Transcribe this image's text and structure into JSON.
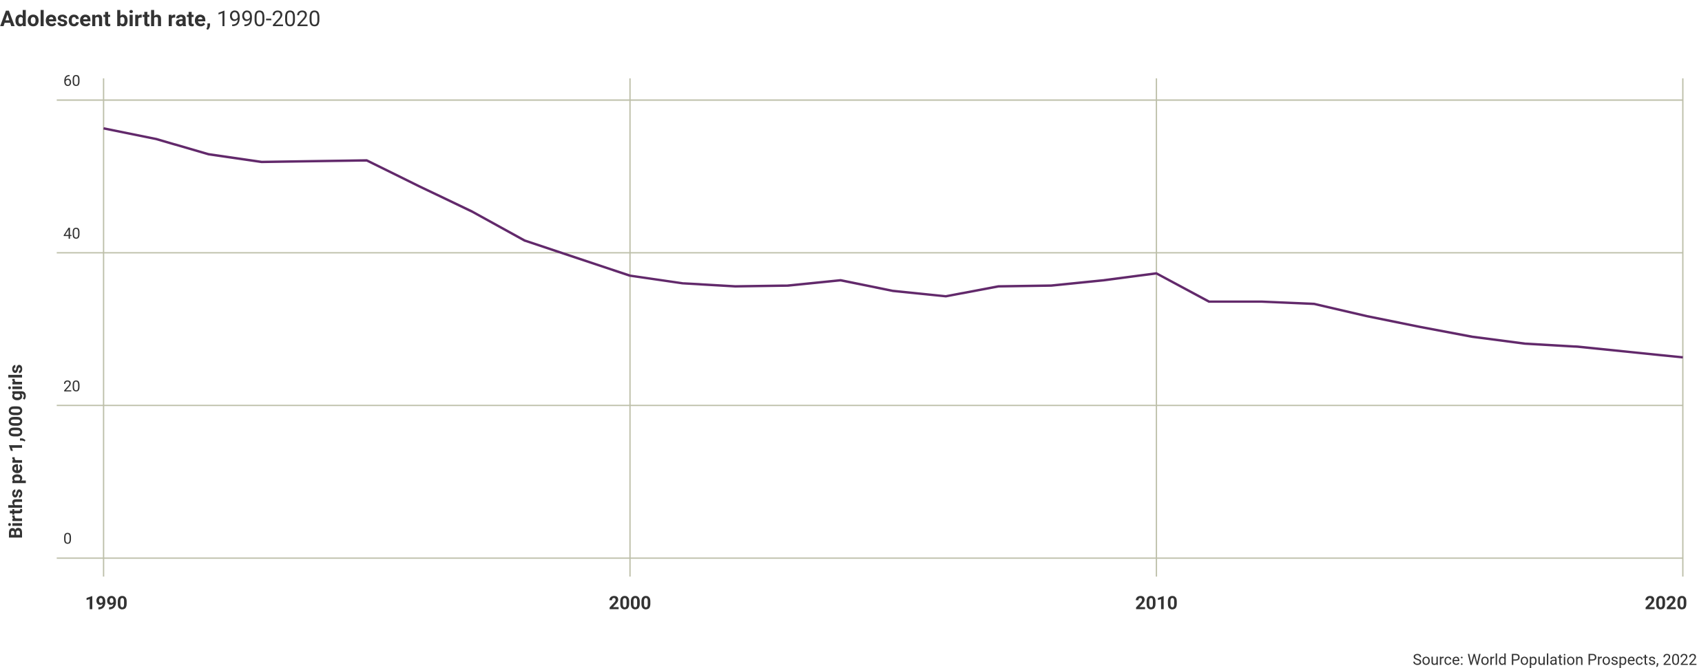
{
  "chart_data": {
    "type": "line",
    "title": "Adolescent birth rate,",
    "subtitle": "1990-2020",
    "y_label": "Births per 1,000 girls",
    "source": "Source: World Population Prospects, 2022",
    "x": [
      1990,
      1991,
      1992,
      1993,
      1994,
      1995,
      1996,
      1997,
      1998,
      1999,
      2000,
      2001,
      2002,
      2003,
      2004,
      2005,
      2006,
      2007,
      2008,
      2009,
      2010,
      2011,
      2012,
      2013,
      2014,
      2015,
      2016,
      2017,
      2018,
      2019,
      2020
    ],
    "series": [
      {
        "name": "Adolescent birth rate",
        "color": "#62296b",
        "values": [
          56.3,
          54.9,
          52.9,
          51.9,
          52.0,
          52.1,
          48.7,
          45.4,
          41.6,
          39.3,
          37.0,
          36.0,
          35.6,
          35.7,
          36.4,
          35.0,
          34.3,
          35.6,
          35.7,
          36.4,
          37.3,
          33.6,
          33.6,
          33.3,
          31.7,
          30.3,
          29.0,
          28.1,
          27.7,
          27.0,
          26.3
        ]
      }
    ],
    "xlim": [
      1990,
      2020
    ],
    "xticks": [
      1990,
      2000,
      2010,
      2020
    ],
    "ylim": [
      0,
      60
    ],
    "yticks": [
      0,
      20,
      40,
      60
    ],
    "grid": true
  }
}
